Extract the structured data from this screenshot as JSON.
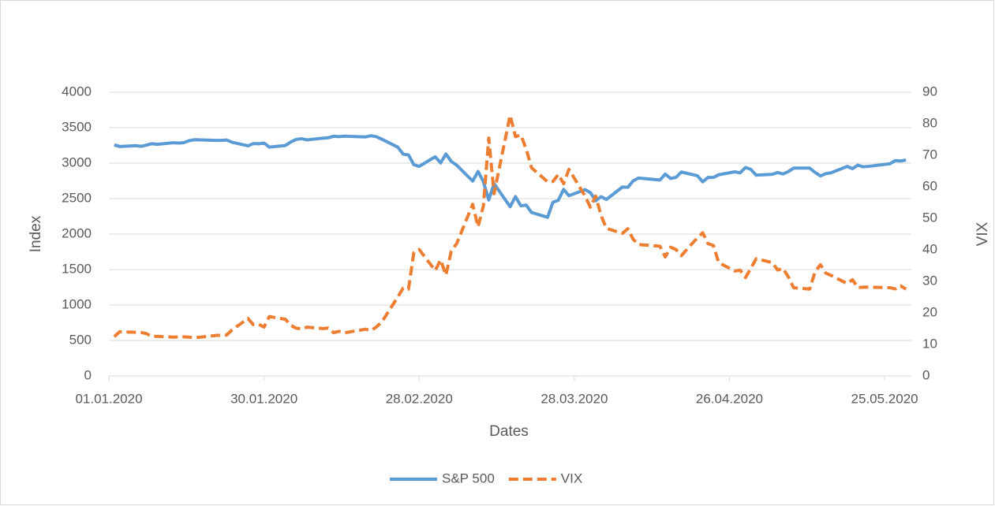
{
  "chart_data": {
    "type": "line",
    "x_label": "Dates",
    "y_label": "Index",
    "y2_label": "VIX",
    "x": [
      "02.01.2020",
      "03.01.2020",
      "06.01.2020",
      "07.01.2020",
      "08.01.2020",
      "09.01.2020",
      "10.01.2020",
      "13.01.2020",
      "14.01.2020",
      "15.01.2020",
      "16.01.2020",
      "17.01.2020",
      "21.01.2020",
      "22.01.2020",
      "23.01.2020",
      "24.01.2020",
      "27.01.2020",
      "28.01.2020",
      "29.01.2020",
      "30.01.2020",
      "31.01.2020",
      "03.02.2020",
      "04.02.2020",
      "05.02.2020",
      "06.02.2020",
      "07.02.2020",
      "10.02.2020",
      "11.02.2020",
      "12.02.2020",
      "13.02.2020",
      "14.02.2020",
      "18.02.2020",
      "19.02.2020",
      "20.02.2020",
      "21.02.2020",
      "24.02.2020",
      "25.02.2020",
      "26.02.2020",
      "27.02.2020",
      "28.02.2020",
      "02.03.2020",
      "03.03.2020",
      "04.03.2020",
      "05.03.2020",
      "06.03.2020",
      "09.03.2020",
      "10.03.2020",
      "11.03.2020",
      "12.03.2020",
      "13.03.2020",
      "16.03.2020",
      "17.03.2020",
      "18.03.2020",
      "19.03.2020",
      "20.03.2020",
      "23.03.2020",
      "24.03.2020",
      "25.03.2020",
      "26.03.2020",
      "27.03.2020",
      "30.03.2020",
      "31.03.2020",
      "01.04.2020",
      "02.04.2020",
      "03.04.2020",
      "06.04.2020",
      "07.04.2020",
      "08.04.2020",
      "09.04.2020",
      "13.04.2020",
      "14.04.2020",
      "15.04.2020",
      "16.04.2020",
      "17.04.2020",
      "20.04.2020",
      "21.04.2020",
      "22.04.2020",
      "23.04.2020",
      "24.04.2020",
      "27.04.2020",
      "28.04.2020",
      "29.04.2020",
      "30.04.2020",
      "01.05.2020",
      "04.05.2020",
      "05.05.2020",
      "06.05.2020",
      "07.05.2020",
      "08.05.2020",
      "11.05.2020",
      "12.05.2020",
      "13.05.2020",
      "14.05.2020",
      "15.05.2020",
      "18.05.2020",
      "19.05.2020",
      "20.05.2020",
      "21.05.2020",
      "22.05.2020",
      "26.05.2020",
      "27.05.2020",
      "28.05.2020",
      "29.05.2020"
    ],
    "series": [
      {
        "name": "S&P 500",
        "color": "#5b9bd5",
        "values": [
          3258,
          3235,
          3246,
          3237,
          3253,
          3275,
          3265,
          3288,
          3283,
          3289,
          3317,
          3330,
          3321,
          3321,
          3326,
          3295,
          3244,
          3276,
          3273,
          3284,
          3226,
          3249,
          3298,
          3334,
          3345,
          3328,
          3352,
          3358,
          3379,
          3374,
          3380,
          3370,
          3386,
          3373,
          3338,
          3226,
          3128,
          3116,
          2979,
          2954,
          3090,
          3003,
          3130,
          3024,
          2972,
          2747,
          2882,
          2741,
          2481,
          2711,
          2386,
          2529,
          2398,
          2409,
          2305,
          2237,
          2448,
          2476,
          2630,
          2541,
          2627,
          2585,
          2471,
          2527,
          2489,
          2664,
          2659,
          2750,
          2790,
          2762,
          2846,
          2784,
          2800,
          2875,
          2823,
          2737,
          2799,
          2798,
          2837,
          2878,
          2863,
          2939,
          2912,
          2830,
          2843,
          2868,
          2848,
          2881,
          2930,
          2930,
          2870,
          2820,
          2852,
          2864,
          2954,
          2922,
          2972,
          2948,
          2955,
          2992,
          3036,
          3030,
          3044
        ]
      },
      {
        "name": "VIX",
        "color": "#ed7d31",
        "axis": "y2",
        "dashed": true,
        "values": [
          12.47,
          14.02,
          13.85,
          13.79,
          13.45,
          12.54,
          12.56,
          12.32,
          12.39,
          12.42,
          12.32,
          12.1,
          12.85,
          12.91,
          12.98,
          14.56,
          18.23,
          16.28,
          16.39,
          15.49,
          18.84,
          17.97,
          16.05,
          15.15,
          14.96,
          15.47,
          15.04,
          15.18,
          13.74,
          14.15,
          13.68,
          14.83,
          14.38,
          15.56,
          17.08,
          25.03,
          27.85,
          27.56,
          39.16,
          40.11,
          33.42,
          36.82,
          31.99,
          39.62,
          41.94,
          54.46,
          47.3,
          53.9,
          75.47,
          57.83,
          82.69,
          75.91,
          76.45,
          72.0,
          66.04,
          61.59,
          61.67,
          63.95,
          61.0,
          65.54,
          57.08,
          53.54,
          57.06,
          50.91,
          46.8,
          45.24,
          46.7,
          43.35,
          41.67,
          41.17,
          37.76,
          40.84,
          40.11,
          38.15,
          43.83,
          45.41,
          41.98,
          41.38,
          35.93,
          33.29,
          33.57,
          31.23,
          34.15,
          37.19,
          35.97,
          33.61,
          34.12,
          31.44,
          27.98,
          27.57,
          33.04,
          35.28,
          32.61,
          31.89,
          29.3,
          30.53,
          27.99,
          28.16,
          28.16,
          28.01,
          27.62,
          28.59,
          27.51
        ]
      }
    ],
    "xlim": [
      "01.01.2020",
      "30.05.2020"
    ],
    "xticks": [
      "01.01.2020",
      "30.01.2020",
      "28.02.2020",
      "28.03.2020",
      "26.04.2020",
      "25.05.2020"
    ],
    "ylim": [
      0,
      4000
    ],
    "yticks": [
      0,
      500,
      1000,
      1500,
      2000,
      2500,
      3000,
      3500,
      4000
    ],
    "y2lim": [
      0,
      90
    ],
    "y2ticks": [
      0,
      10,
      20,
      30,
      40,
      50,
      60,
      70,
      80,
      90
    ],
    "grid": true,
    "legend": "bottom"
  }
}
